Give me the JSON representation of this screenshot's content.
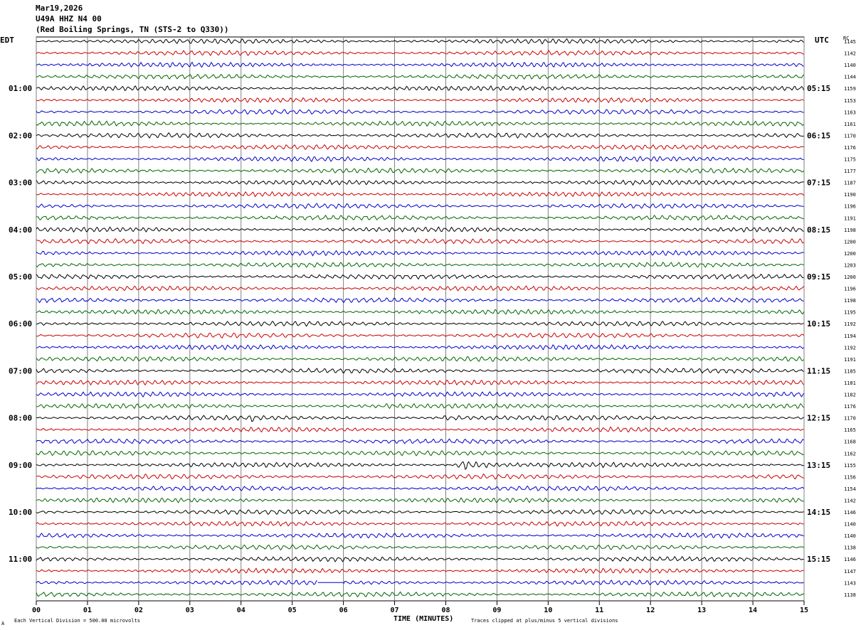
{
  "header": {
    "date": "Mar19,2026",
    "station": "U49A HHZ N4 00",
    "location": "(Red Boiling Springs, TN (STS-2 to Q330))"
  },
  "left_tz": "EDT",
  "right_tz": "UTC",
  "rc_header": "RC",
  "footer": {
    "scale": "Each Vertical Division =  500.00 microvolts",
    "clip": "Traces clipped at plus/minus 5 vertical divisions",
    "corner": "A"
  },
  "colors": {
    "trace_cycle": [
      "#000000",
      "#cc0000",
      "#0000cc",
      "#006600"
    ],
    "grid": "#808080"
  },
  "chart_data": {
    "type": "line",
    "title": "",
    "xlabel": "TIME (MINUTES)",
    "xlim": [
      0,
      15
    ],
    "x_ticks": [
      "00",
      "01",
      "02",
      "03",
      "04",
      "05",
      "06",
      "07",
      "08",
      "09",
      "10",
      "11",
      "12",
      "13",
      "14",
      "15"
    ],
    "hour_labels_left": [
      "01:00",
      "02:00",
      "03:00",
      "04:00",
      "05:00",
      "06:00",
      "07:00",
      "08:00",
      "09:00",
      "10:00",
      "11:00"
    ],
    "hour_labels_right": [
      "05:15",
      "06:15",
      "07:15",
      "08:15",
      "09:15",
      "10:15",
      "11:15",
      "12:15",
      "13:15",
      "14:15",
      "15:15"
    ],
    "row_values": [
      "1145",
      "1142",
      "1140",
      "1144",
      "1159",
      "1153",
      "1163",
      "1161",
      "1170",
      "1176",
      "1175",
      "1177",
      "1187",
      "1190",
      "1196",
      "1191",
      "1198",
      "1200",
      "1200",
      "1203",
      "1200",
      "1196",
      "1198",
      "1195",
      "1192",
      "1194",
      "1192",
      "1191",
      "1185",
      "1181",
      "1182",
      "1176",
      "1170",
      "1165",
      "1168",
      "1162",
      "1155",
      "1156",
      "1154",
      "1142",
      "1146",
      "1140",
      "1140",
      "1138",
      "1146",
      "1147",
      "1143",
      "1138"
    ],
    "events": [
      {
        "row": 32,
        "start_min": 4.2,
        "end_min": 4.5,
        "amp": 4
      },
      {
        "row": 32,
        "start_min": 7.9,
        "end_min": 10.0,
        "amp": 2.5
      },
      {
        "row": 31,
        "start_min": 6.8,
        "end_min": 7.6,
        "amp": 2
      },
      {
        "row": 31,
        "start_min": 13.4,
        "end_min": 13.8,
        "amp": 2
      },
      {
        "row": 36,
        "start_min": 8.2,
        "end_min": 10.0,
        "amp": 8
      },
      {
        "row": 41,
        "start_min": 8.4,
        "end_min": 8.6,
        "amp": 3
      }
    ],
    "gaps": [
      {
        "row": 46,
        "start_min": 5.5,
        "end_min": 6.0
      }
    ]
  }
}
